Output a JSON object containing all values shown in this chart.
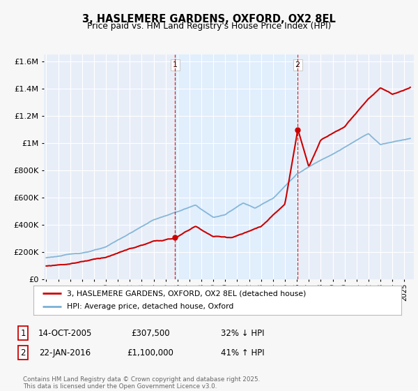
{
  "title": "3, HASLEMERE GARDENS, OXFORD, OX2 8EL",
  "subtitle": "Price paid vs. HM Land Registry's House Price Index (HPI)",
  "legend_line1": "3, HASLEMERE GARDENS, OXFORD, OX2 8EL (detached house)",
  "legend_line2": "HPI: Average price, detached house, Oxford",
  "footnote": "Contains HM Land Registry data © Crown copyright and database right 2025.\nThis data is licensed under the Open Government Licence v3.0.",
  "sale1_label": "1",
  "sale1_date": "14-OCT-2005",
  "sale1_price": "£307,500",
  "sale1_hpi": "32% ↓ HPI",
  "sale2_label": "2",
  "sale2_date": "22-JAN-2016",
  "sale2_price": "£1,100,000",
  "sale2_hpi": "41% ↑ HPI",
  "sale1_year": 2005.79,
  "sale2_year": 2016.06,
  "sale1_price_val": 307500,
  "sale2_price_val": 1100000,
  "red_color": "#cc0000",
  "blue_color": "#7ab0d4",
  "shade_color": "#ddeeff",
  "background_color": "#f7f7f7",
  "plot_bg_color": "#e8eef8",
  "grid_color": "#ffffff",
  "ylim_max": 1650000,
  "xmin": 1994.8,
  "xmax": 2025.8
}
